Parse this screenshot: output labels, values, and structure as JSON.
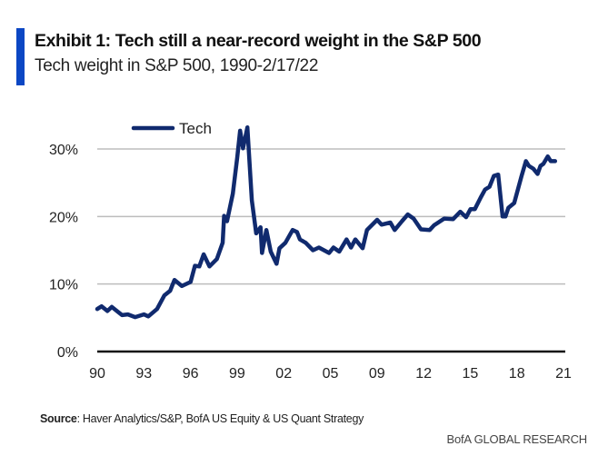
{
  "header": {
    "title": "Exhibit 1: Tech still a near-record weight in the S&P 500",
    "subtitle": "Tech weight in S&P 500, 1990-2/17/22"
  },
  "footer": {
    "source_label": "Source",
    "source_text": ": Haver Analytics/S&P, BofA US Equity & US Quant Strategy",
    "brand": "BofA GLOBAL RESEARCH"
  },
  "colors": {
    "accent": "#0b47c4",
    "series": "#102a6e",
    "grid": "#bdbdbd",
    "axis": "#111111"
  },
  "chart_data": {
    "type": "line",
    "title": "Exhibit 1: Tech still a near-record weight in the S&P 500",
    "subtitle": "Tech weight in S&P 500, 1990-2/17/22",
    "xlabel": "",
    "ylabel": "",
    "ylim": [
      0,
      30
    ],
    "xlim": [
      1990,
      2022.1
    ],
    "grid": true,
    "legend": "top-left",
    "x_tick_labels": [
      "90",
      "93",
      "96",
      "99",
      "02",
      "05",
      "09",
      "12",
      "15",
      "18",
      "21"
    ],
    "y_ticks": [
      0,
      10,
      20,
      30
    ],
    "y_tick_labels": [
      "0%",
      "10%",
      "20%",
      "30%"
    ],
    "series": [
      {
        "name": "Tech",
        "x": [
          1990.0,
          1990.3,
          1990.7,
          1991.0,
          1991.7,
          1992.1,
          1992.6,
          1993.2,
          1993.5,
          1994.1,
          1994.6,
          1995.0,
          1995.3,
          1995.8,
          1996.4,
          1996.7,
          1997.0,
          1997.3,
          1997.7,
          1998.2,
          1998.6,
          1998.7,
          1998.9,
          1999.3,
          1999.6,
          1999.8,
          2000.0,
          2000.3,
          2000.6,
          2000.9,
          2001.2,
          2001.3,
          2001.6,
          2001.9,
          2002.3,
          2002.5,
          2002.9,
          2003.4,
          2003.7,
          2003.9,
          2004.3,
          2004.8,
          2005.2,
          2005.9,
          2006.2,
          2006.6,
          2007.1,
          2007.4,
          2007.7,
          2008.2,
          2008.5,
          2009.2,
          2009.5,
          2010.1,
          2010.4,
          2010.9,
          2011.3,
          2011.7,
          2012.2,
          2012.8,
          2013.1,
          2013.8,
          2014.4,
          2014.9,
          2015.3,
          2015.6,
          2015.9,
          2016.3,
          2016.6,
          2016.9,
          2017.2,
          2017.5,
          2017.8,
          2018.0,
          2018.2,
          2018.6,
          2019.1,
          2019.4,
          2019.6,
          2019.9,
          2020.2,
          2020.4,
          2020.6,
          2020.9,
          2021.1,
          2021.2,
          2021.4
        ],
        "values": [
          6.3,
          6.7,
          6.0,
          6.6,
          5.4,
          5.5,
          5.1,
          5.5,
          5.2,
          6.3,
          8.3,
          9.0,
          10.6,
          9.7,
          10.3,
          12.7,
          12.6,
          14.4,
          12.6,
          13.7,
          16.1,
          20.1,
          19.3,
          23.4,
          28.7,
          32.7,
          30.1,
          33.2,
          22.4,
          17.5,
          18.4,
          14.6,
          18.0,
          14.8,
          13.0,
          15.3,
          16.1,
          18.0,
          17.7,
          16.6,
          16.1,
          15.0,
          15.4,
          14.6,
          15.4,
          14.8,
          16.6,
          15.4,
          16.6,
          15.3,
          18.0,
          19.5,
          18.8,
          19.1,
          18.0,
          19.3,
          20.3,
          19.7,
          18.1,
          18.0,
          18.7,
          19.7,
          19.6,
          20.7,
          19.9,
          21.1,
          21.1,
          22.8,
          24.0,
          24.4,
          26.0,
          26.2,
          20.0,
          20.0,
          21.3,
          22.0,
          26.0,
          28.2,
          27.5,
          27.1,
          26.3,
          27.5,
          27.8,
          28.9,
          28.2,
          28.2,
          28.2
        ]
      }
    ]
  }
}
